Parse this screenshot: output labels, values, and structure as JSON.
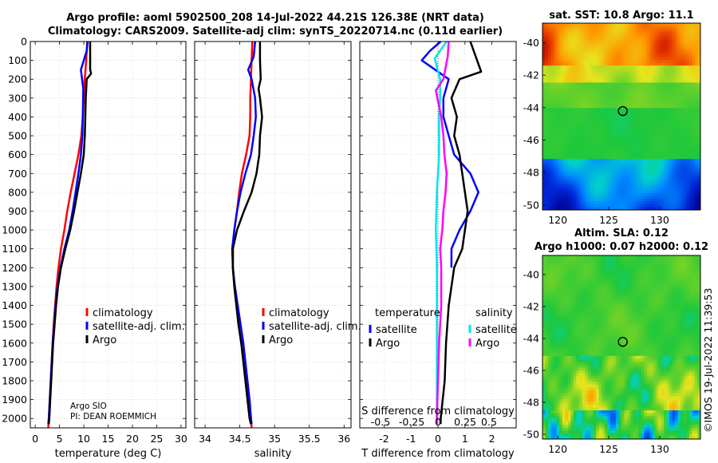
{
  "header": {
    "title_line1": "Argo profile: aoml 5902500_208 14-Jul-2022 44.21S 126.38E (NRT data)",
    "title_line2": "Climatology: CARS2009. Satellite-adj clim: synTS_20220714.nc (0.11d earlier)"
  },
  "colors": {
    "climatology": "#ff0000",
    "satellite_adj": "#0000ff",
    "argo": "#000000",
    "temp_diff_satellite": "#0000ff",
    "temp_diff_argo": "#000000",
    "sal_diff_satellite": "#00e5ee",
    "sal_diff_argo": "#ff00ff"
  },
  "credits": {
    "line1": "Argo SIO",
    "line2": "PI: DEAN ROEMMICH"
  },
  "watermark": "©IMOS 19-Jul-2022 11:39:53",
  "chart_data": [
    {
      "id": "temperature",
      "type": "line",
      "xlabel": "temperature (deg C)",
      "xlim": [
        -1,
        31
      ],
      "xticks": [
        0,
        5,
        10,
        15,
        20,
        25,
        30
      ],
      "ylim": [
        0,
        2050
      ],
      "yticks": [
        0,
        100,
        200,
        300,
        400,
        500,
        600,
        700,
        800,
        900,
        1000,
        1100,
        1200,
        1300,
        1400,
        1500,
        1600,
        1700,
        1800,
        1900,
        2000
      ],
      "legend": [
        "climatology",
        "satellite-adj. clim.",
        "Argo"
      ],
      "series": [
        {
          "name": "climatology",
          "color": "#ff0000",
          "points": [
            [
              10.7,
              0
            ],
            [
              10.5,
              100
            ],
            [
              10.2,
              200
            ],
            [
              10.0,
              300
            ],
            [
              9.8,
              400
            ],
            [
              9.5,
              500
            ],
            [
              8.9,
              600
            ],
            [
              8.1,
              700
            ],
            [
              7.3,
              800
            ],
            [
              6.6,
              900
            ],
            [
              6.0,
              1000
            ],
            [
              5.3,
              1100
            ],
            [
              4.8,
              1200
            ],
            [
              4.4,
              1300
            ],
            [
              4.1,
              1400
            ],
            [
              3.8,
              1500
            ],
            [
              3.6,
              1600
            ],
            [
              3.4,
              1700
            ],
            [
              3.2,
              1800
            ],
            [
              3.0,
              1900
            ],
            [
              2.8,
              2000
            ],
            [
              2.7,
              2050
            ]
          ]
        },
        {
          "name": "satellite-adj. clim.",
          "color": "#0000ff",
          "points": [
            [
              10.8,
              0
            ],
            [
              10.6,
              50
            ],
            [
              9.4,
              150
            ],
            [
              9.9,
              250
            ],
            [
              9.8,
              400
            ],
            [
              9.7,
              500
            ],
            [
              9.4,
              600
            ],
            [
              8.9,
              700
            ],
            [
              8.3,
              800
            ],
            [
              7.7,
              900
            ],
            [
              7.0,
              1000
            ],
            [
              6.0,
              1100
            ],
            [
              5.2,
              1200
            ],
            [
              4.6,
              1300
            ],
            [
              4.2,
              1400
            ],
            [
              3.9,
              1500
            ],
            [
              3.6,
              1600
            ],
            [
              3.4,
              1700
            ],
            [
              3.2,
              1800
            ],
            [
              3.0,
              1900
            ],
            [
              2.8,
              2000
            ],
            [
              2.7,
              2030
            ]
          ]
        },
        {
          "name": "Argo",
          "color": "#000000",
          "points": [
            [
              11.3,
              0
            ],
            [
              11.3,
              150
            ],
            [
              11.5,
              170
            ],
            [
              10.6,
              200
            ],
            [
              10.4,
              300
            ],
            [
              10.3,
              400
            ],
            [
              10.2,
              500
            ],
            [
              10.0,
              600
            ],
            [
              9.4,
              700
            ],
            [
              8.7,
              800
            ],
            [
              8.0,
              900
            ],
            [
              7.2,
              1000
            ],
            [
              6.2,
              1100
            ],
            [
              5.3,
              1200
            ],
            [
              4.7,
              1300
            ],
            [
              4.3,
              1400
            ],
            [
              4.0,
              1500
            ],
            [
              3.7,
              1600
            ],
            [
              3.5,
              1700
            ],
            [
              3.3,
              1800
            ],
            [
              3.1,
              1900
            ],
            [
              2.9,
              2000
            ],
            [
              2.8,
              2030
            ]
          ]
        }
      ]
    },
    {
      "id": "salinity",
      "type": "line",
      "xlabel": "salinity",
      "xlim": [
        33.85,
        36.1
      ],
      "xticks": [
        34,
        34.5,
        35,
        35.5,
        36
      ],
      "xticklabels": [
        "34",
        "34.5",
        "35",
        "35.5",
        "36"
      ],
      "ylim": [
        0,
        2050
      ],
      "legend": [
        "climatology",
        "satellite-adj. clim.",
        "Argo"
      ],
      "series": [
        {
          "name": "climatology",
          "color": "#ff0000",
          "points": [
            [
              34.68,
              0
            ],
            [
              34.67,
              100
            ],
            [
              34.66,
              200
            ],
            [
              34.65,
              300
            ],
            [
              34.65,
              400
            ],
            [
              34.64,
              500
            ],
            [
              34.59,
              600
            ],
            [
              34.53,
              700
            ],
            [
              34.49,
              800
            ],
            [
              34.46,
              900
            ],
            [
              34.42,
              1000
            ],
            [
              34.4,
              1100
            ],
            [
              34.4,
              1200
            ],
            [
              34.42,
              1300
            ],
            [
              34.45,
              1400
            ],
            [
              34.48,
              1500
            ],
            [
              34.52,
              1600
            ],
            [
              34.56,
              1700
            ],
            [
              34.6,
              1800
            ],
            [
              34.63,
              1900
            ],
            [
              34.66,
              2000
            ],
            [
              34.67,
              2050
            ]
          ]
        },
        {
          "name": "satellite-adj. clim.",
          "color": "#0000ff",
          "points": [
            [
              34.72,
              0
            ],
            [
              34.7,
              80
            ],
            [
              34.62,
              150
            ],
            [
              34.67,
              200
            ],
            [
              34.72,
              300
            ],
            [
              34.73,
              400
            ],
            [
              34.7,
              500
            ],
            [
              34.66,
              600
            ],
            [
              34.58,
              700
            ],
            [
              34.51,
              800
            ],
            [
              34.46,
              900
            ],
            [
              34.42,
              1000
            ],
            [
              34.39,
              1100
            ],
            [
              34.4,
              1200
            ],
            [
              34.43,
              1300
            ],
            [
              34.47,
              1400
            ],
            [
              34.51,
              1500
            ],
            [
              34.55,
              1600
            ],
            [
              34.58,
              1700
            ],
            [
              34.61,
              1800
            ],
            [
              34.64,
              1900
            ],
            [
              34.66,
              2000
            ],
            [
              34.67,
              2030
            ]
          ]
        },
        {
          "name": "Argo",
          "color": "#000000",
          "points": [
            [
              34.79,
              0
            ],
            [
              34.79,
              100
            ],
            [
              34.8,
              200
            ],
            [
              34.77,
              250
            ],
            [
              34.79,
              300
            ],
            [
              34.82,
              400
            ],
            [
              34.79,
              500
            ],
            [
              34.78,
              600
            ],
            [
              34.74,
              700
            ],
            [
              34.67,
              800
            ],
            [
              34.56,
              900
            ],
            [
              34.46,
              1000
            ],
            [
              34.4,
              1100
            ],
            [
              34.4,
              1200
            ],
            [
              34.42,
              1300
            ],
            [
              34.45,
              1400
            ],
            [
              34.48,
              1500
            ],
            [
              34.52,
              1600
            ],
            [
              34.55,
              1700
            ],
            [
              34.58,
              1800
            ],
            [
              34.61,
              1900
            ],
            [
              34.64,
              2000
            ],
            [
              34.66,
              2030
            ]
          ]
        }
      ]
    },
    {
      "id": "difference",
      "type": "line",
      "xlabel": "T difference from climatology",
      "xlabel_top": "S difference from climatology",
      "xlim": [
        -2.9,
        2.9
      ],
      "xticks": [
        -2,
        -1,
        0,
        1,
        2
      ],
      "xticklabels": [
        "-2",
        "-1",
        "0",
        "1",
        "2"
      ],
      "sticks": [
        "-0.5",
        "-0.25",
        "0",
        "0.25",
        "0.5"
      ],
      "ylim": [
        0,
        2050
      ],
      "legend_temperature_title": "temperature",
      "legend_salinity_title": "salinity",
      "legend_temperature": [
        "satellite",
        "Argo"
      ],
      "legend_salinity": [
        "satellite",
        "Argo"
      ],
      "series": [
        {
          "name": "T satellite",
          "color": "#0000ff",
          "points": [
            [
              0.1,
              0
            ],
            [
              -0.3,
              50
            ],
            [
              -0.6,
              100
            ],
            [
              0.4,
              200
            ],
            [
              0.2,
              300
            ],
            [
              0.2,
              400
            ],
            [
              0.4,
              500
            ],
            [
              0.6,
              600
            ],
            [
              1.2,
              700
            ],
            [
              1.5,
              800
            ],
            [
              1.2,
              900
            ],
            [
              0.8,
              1000
            ],
            [
              0.5,
              1100
            ],
            [
              0.5,
              1200
            ]
          ]
        },
        {
          "name": "T Argo",
          "color": "#000000",
          "points": [
            [
              1.2,
              0
            ],
            [
              1.5,
              120
            ],
            [
              1.6,
              160
            ],
            [
              0.8,
              200
            ],
            [
              0.5,
              300
            ],
            [
              0.7,
              400
            ],
            [
              0.6,
              500
            ],
            [
              0.8,
              600
            ],
            [
              0.9,
              700
            ],
            [
              1.0,
              800
            ],
            [
              1.1,
              900
            ],
            [
              1.0,
              1000
            ],
            [
              0.9,
              1100
            ],
            [
              0.6,
              1200
            ],
            [
              0.4,
              1400
            ],
            [
              0.3,
              1600
            ],
            [
              0.25,
              1800
            ],
            [
              0.1,
              2000
            ],
            [
              0.1,
              2030
            ]
          ]
        },
        {
          "name": "S satellite",
          "color": "#00e5ee",
          "points": [
            [
              0.08,
              0
            ],
            [
              -0.03,
              90
            ],
            [
              0.02,
              200
            ],
            [
              0.02,
              300
            ],
            [
              0.01,
              400
            ],
            [
              0.01,
              600
            ],
            [
              -0.01,
              800
            ],
            [
              -0.02,
              1000
            ],
            [
              -0.01,
              1200
            ],
            [
              -0.01,
              1600
            ],
            [
              -0.01,
              2000
            ],
            [
              -0.01,
              2030
            ]
          ]
        },
        {
          "name": "S Argo",
          "color": "#ff00ff",
          "points": [
            [
              0.1,
              0
            ],
            [
              0.09,
              80
            ],
            [
              0.05,
              200
            ],
            [
              -0.02,
              260
            ],
            [
              0.03,
              400
            ],
            [
              0.05,
              500
            ],
            [
              0.06,
              600
            ],
            [
              0.08,
              700
            ],
            [
              0.07,
              800
            ],
            [
              0.05,
              900
            ],
            [
              0.04,
              1000
            ],
            [
              0.02,
              1100
            ],
            [
              0.03,
              1200
            ],
            [
              0.03,
              1400
            ],
            [
              0.01,
              1600
            ],
            [
              0.0,
              1800
            ],
            [
              -0.01,
              2000
            ],
            [
              -0.01,
              2030
            ]
          ]
        }
      ]
    },
    {
      "id": "sst_map",
      "type": "heatmap",
      "title": "sat. SST: 10.8 Argo: 11.1",
      "xlim": [
        118.5,
        134
      ],
      "ylim": [
        -50.3,
        -38.8
      ],
      "xticks": [
        120,
        125,
        130
      ],
      "yticks": [
        -40,
        -42,
        -44,
        -46,
        -48,
        -50
      ],
      "marker": [
        126.38,
        -44.21
      ]
    },
    {
      "id": "sla_map",
      "type": "heatmap",
      "title_line1": "Altim. SLA: 0.12",
      "title_line2": "Argo h1000: 0.07 h2000: 0.12",
      "xlim": [
        118.5,
        134
      ],
      "ylim": [
        -50.3,
        -38.8
      ],
      "xticks": [
        120,
        125,
        130
      ],
      "yticks": [
        -40,
        -42,
        -44,
        -46,
        -48,
        -50
      ],
      "marker": [
        126.38,
        -44.21
      ]
    }
  ]
}
